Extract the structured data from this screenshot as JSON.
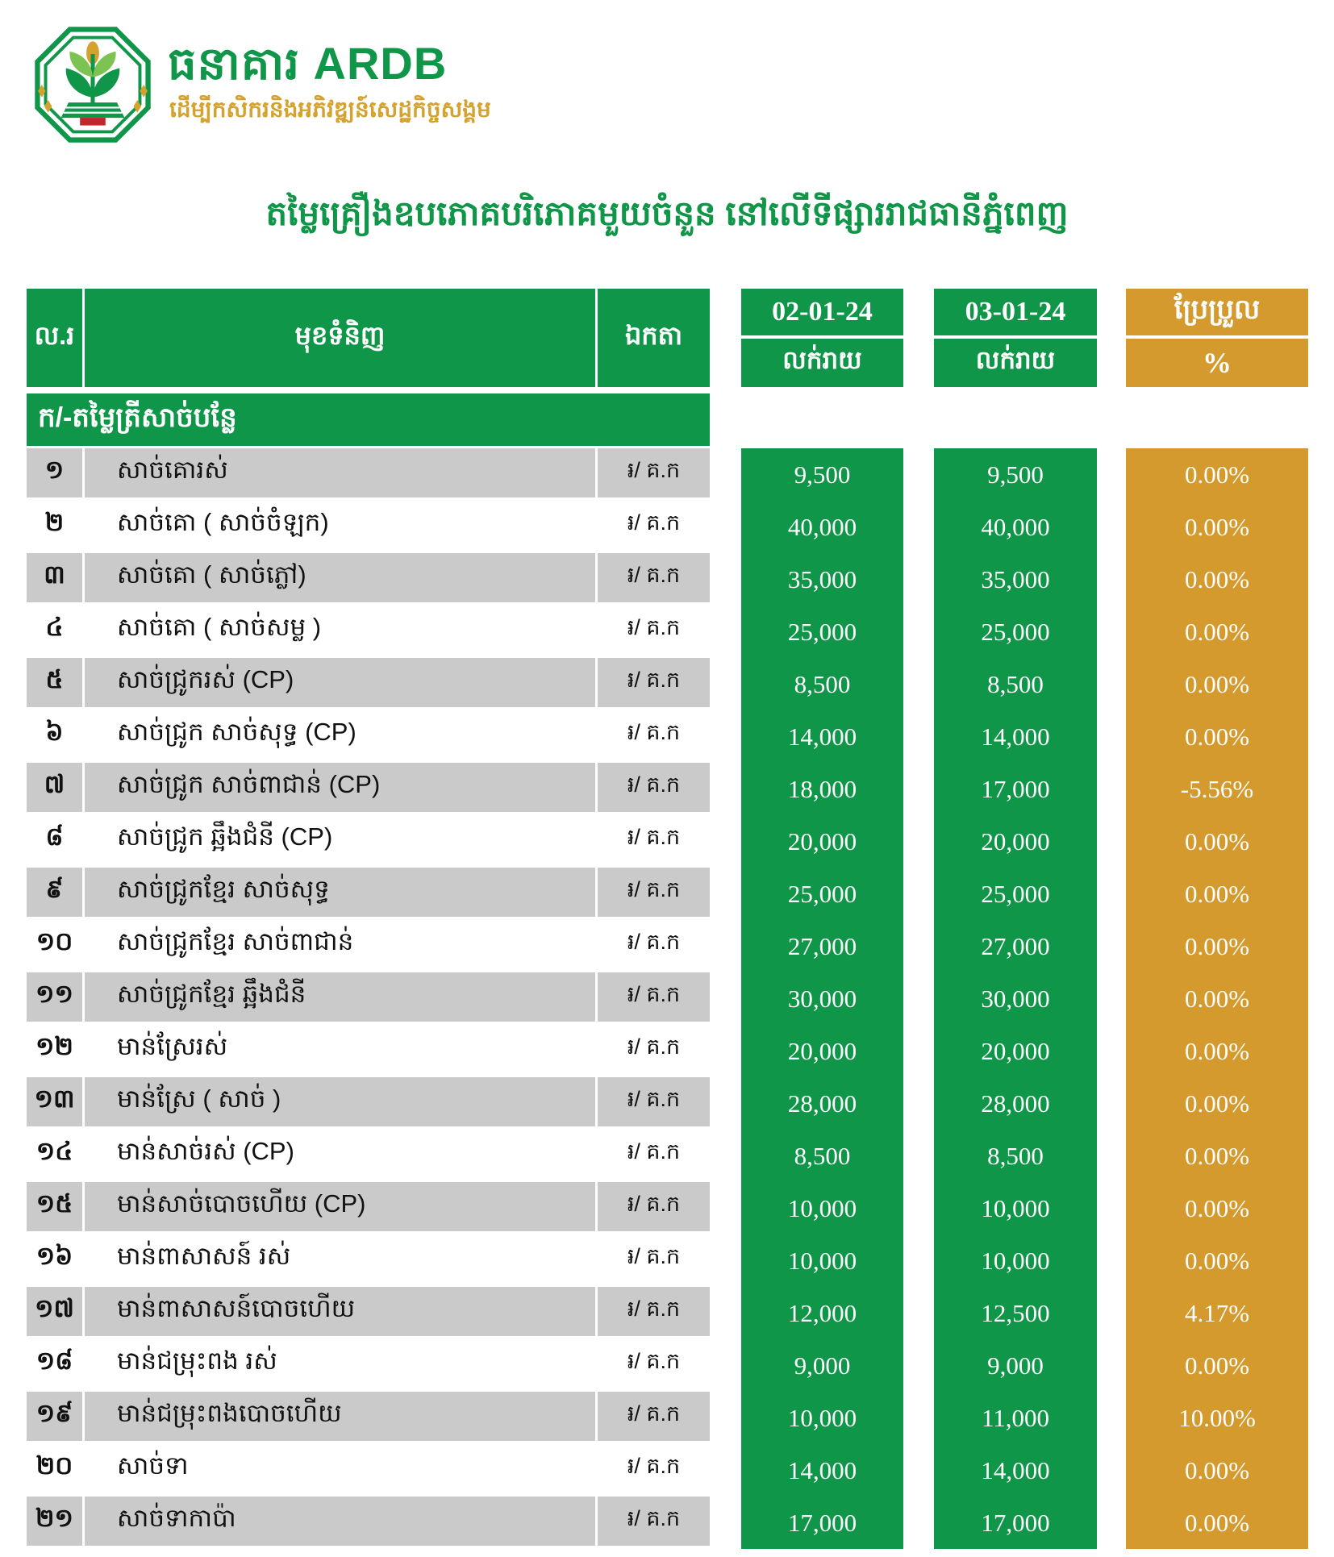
{
  "brand": {
    "name": "ធនាគារ ARDB",
    "tagline": "ដើម្បីកសិករនិងអភិវឌ្ឍន៍សេដ្ឋកិច្ចសង្គម"
  },
  "title": "តម្លៃគ្រឿងឧបភោគបរិភោគមួយចំនួន នៅលើទីផ្សាររាជធានីភ្នំពេញ",
  "colors": {
    "green": "#0f9648",
    "gold": "#d59a2e",
    "stripe_gray": "#cacaca"
  },
  "table": {
    "headers": {
      "no": "ល.រ",
      "item": "មុខទំនិញ",
      "unit": "ឯកតា",
      "date1": "02-01-24",
      "date2": "03-01-24",
      "retail1": "លក់រាយ",
      "retail2": "លក់រាយ",
      "change": "ប្រែប្រួល",
      "percent": "%"
    },
    "section": "ក/-តម្លៃត្រីសាច់បន្លែ",
    "rows": [
      {
        "no": "១",
        "item": "សាច់គោរស់",
        "unit": "៛/ គ.ក",
        "price1": "9,500",
        "price2": "9,500",
        "change": "0.00%"
      },
      {
        "no": "២",
        "item": "សាច់គោ ( សាច់ចំឡក)",
        "unit": "៛/ គ.ក",
        "price1": "40,000",
        "price2": "40,000",
        "change": "0.00%"
      },
      {
        "no": "៣",
        "item": "សាច់គោ ( សាច់ភ្លៅ)",
        "unit": "៛/ គ.ក",
        "price1": "35,000",
        "price2": "35,000",
        "change": "0.00%"
      },
      {
        "no": "៤",
        "item": "សាច់គោ ( សាច់សម្ល )",
        "unit": "៛/ គ.ក",
        "price1": "25,000",
        "price2": "25,000",
        "change": "0.00%"
      },
      {
        "no": "៥",
        "item": "សាច់ជ្រូករស់ (CP)",
        "unit": "៛/ គ.ក",
        "price1": "8,500",
        "price2": "8,500",
        "change": "0.00%"
      },
      {
        "no": "៦",
        "item": "សាច់ជ្រូក សាច់សុទ្ធ (CP)",
        "unit": "៛/ គ.ក",
        "price1": "14,000",
        "price2": "14,000",
        "change": "0.00%"
      },
      {
        "no": "៧",
        "item": "សាច់ជ្រូក សាច់ពាជាន់ (CP)",
        "unit": "៛/ គ.ក",
        "price1": "18,000",
        "price2": "17,000",
        "change": "-5.56%"
      },
      {
        "no": "៨",
        "item": "សាច់ជ្រូក ឆ្អឹងជំនី (CP)",
        "unit": "៛/ គ.ក",
        "price1": "20,000",
        "price2": "20,000",
        "change": "0.00%"
      },
      {
        "no": "៩",
        "item": "សាច់ជ្រូកខ្មែរ សាច់សុទ្ធ",
        "unit": "៛/ គ.ក",
        "price1": "25,000",
        "price2": "25,000",
        "change": "0.00%"
      },
      {
        "no": "១០",
        "item": "សាច់ជ្រូកខ្មែរ សាច់ពាជាន់",
        "unit": "៛/ គ.ក",
        "price1": "27,000",
        "price2": "27,000",
        "change": "0.00%"
      },
      {
        "no": "១១",
        "item": "សាច់ជ្រូកខ្មែរ ឆ្អឹងជំនី",
        "unit": "៛/ គ.ក",
        "price1": "30,000",
        "price2": "30,000",
        "change": "0.00%"
      },
      {
        "no": "១២",
        "item": "មាន់ស្រែរស់",
        "unit": "៛/ គ.ក",
        "price1": "20,000",
        "price2": "20,000",
        "change": "0.00%"
      },
      {
        "no": "១៣",
        "item": "មាន់ស្រែ ( សាច់ )",
        "unit": "៛/ គ.ក",
        "price1": "28,000",
        "price2": "28,000",
        "change": "0.00%"
      },
      {
        "no": "១៤",
        "item": "មាន់សាច់រស់ (CP)",
        "unit": "៛/ គ.ក",
        "price1": "8,500",
        "price2": "8,500",
        "change": "0.00%"
      },
      {
        "no": "១៥",
        "item": "មាន់សាច់បោចហើយ (CP)",
        "unit": "៛/ គ.ក",
        "price1": "10,000",
        "price2": "10,000",
        "change": "0.00%"
      },
      {
        "no": "១៦",
        "item": "មាន់ពាសាសន៍ រស់",
        "unit": "៛/ គ.ក",
        "price1": "10,000",
        "price2": "10,000",
        "change": "0.00%"
      },
      {
        "no": "១៧",
        "item": "មាន់ពាសាសន៍បោចហើយ",
        "unit": "៛/ គ.ក",
        "price1": "12,000",
        "price2": "12,500",
        "change": "4.17%"
      },
      {
        "no": "១៨",
        "item": "មាន់ជម្រុះពង រស់",
        "unit": "៛/ គ.ក",
        "price1": "9,000",
        "price2": "9,000",
        "change": "0.00%"
      },
      {
        "no": "១៩",
        "item": "មាន់ជម្រុះពងបោចហើយ",
        "unit": "៛/ គ.ក",
        "price1": "10,000",
        "price2": "11,000",
        "change": "10.00%"
      },
      {
        "no": "២០",
        "item": "សាច់ទា",
        "unit": "៛/ គ.ក",
        "price1": "14,000",
        "price2": "14,000",
        "change": "0.00%"
      },
      {
        "no": "២១",
        "item": "សាច់ទាកាប៉ា",
        "unit": "៛/ គ.ក",
        "price1": "17,000",
        "price2": "17,000",
        "change": "0.00%"
      }
    ]
  }
}
